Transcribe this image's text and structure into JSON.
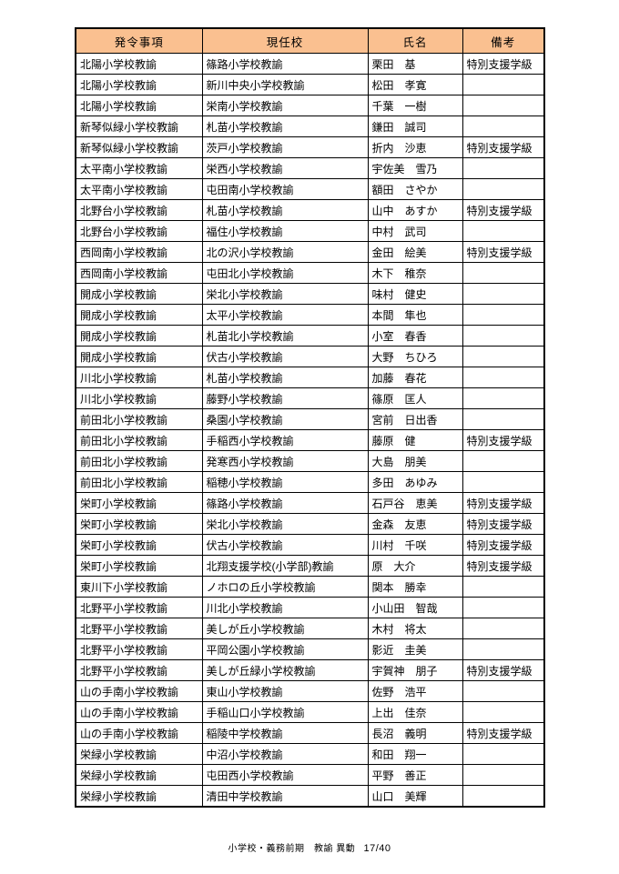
{
  "colors": {
    "header_bg": "#FAC090",
    "border": "#000000",
    "page_bg": "#FFFFFF"
  },
  "table": {
    "headers": [
      "発令事項",
      "現任校",
      "氏名",
      "備考"
    ],
    "rows": [
      [
        "北陽小学校教諭",
        "篠路小学校教諭",
        "栗田　基",
        "特別支援学級"
      ],
      [
        "北陽小学校教諭",
        "新川中央小学校教諭",
        "松田　孝寛",
        ""
      ],
      [
        "北陽小学校教諭",
        "栄南小学校教諭",
        "千葉　一樹",
        ""
      ],
      [
        "新琴似緑小学校教諭",
        "札苗小学校教諭",
        "鎌田　誠司",
        ""
      ],
      [
        "新琴似緑小学校教諭",
        "茨戸小学校教諭",
        "折内　沙恵",
        "特別支援学級"
      ],
      [
        "太平南小学校教諭",
        "栄西小学校教諭",
        "宇佐美　雪乃",
        ""
      ],
      [
        "太平南小学校教諭",
        "屯田南小学校教諭",
        "額田　さやか",
        ""
      ],
      [
        "北野台小学校教諭",
        "札苗小学校教諭",
        "山中　あすか",
        "特別支援学級"
      ],
      [
        "北野台小学校教諭",
        "福住小学校教諭",
        "中村　武司",
        ""
      ],
      [
        "西岡南小学校教諭",
        "北の沢小学校教諭",
        "金田　絵美",
        "特別支援学級"
      ],
      [
        "西岡南小学校教諭",
        "屯田北小学校教諭",
        "木下　稚奈",
        ""
      ],
      [
        "開成小学校教諭",
        "栄北小学校教諭",
        "味村　健史",
        ""
      ],
      [
        "開成小学校教諭",
        "太平小学校教諭",
        "本間　隼也",
        ""
      ],
      [
        "開成小学校教諭",
        "札苗北小学校教諭",
        "小室　春香",
        ""
      ],
      [
        "開成小学校教諭",
        "伏古小学校教諭",
        "大野　ちひろ",
        ""
      ],
      [
        "川北小学校教諭",
        "札苗小学校教諭",
        "加藤　春花",
        ""
      ],
      [
        "川北小学校教諭",
        "藤野小学校教諭",
        "篠原　匡人",
        ""
      ],
      [
        "前田北小学校教諭",
        "桑園小学校教諭",
        "宮前　日出香",
        ""
      ],
      [
        "前田北小学校教諭",
        "手稲西小学校教諭",
        "藤原　健",
        "特別支援学級"
      ],
      [
        "前田北小学校教諭",
        "発寒西小学校教諭",
        "大島　朋美",
        ""
      ],
      [
        "前田北小学校教諭",
        "稲穂小学校教諭",
        "多田　あゆみ",
        ""
      ],
      [
        "栄町小学校教諭",
        "篠路小学校教諭",
        "石戸谷　恵美",
        "特別支援学級"
      ],
      [
        "栄町小学校教諭",
        "栄北小学校教諭",
        "金森　友恵",
        "特別支援学級"
      ],
      [
        "栄町小学校教諭",
        "伏古小学校教諭",
        "川村　千咲",
        "特別支援学級"
      ],
      [
        "栄町小学校教諭",
        "北翔支援学校(小学部)教諭",
        "原　大介",
        "特別支援学級"
      ],
      [
        "東川下小学校教諭",
        "ノホロの丘小学校教諭",
        "関本　勝幸",
        ""
      ],
      [
        "北野平小学校教諭",
        "川北小学校教諭",
        "小山田　智哉",
        ""
      ],
      [
        "北野平小学校教諭",
        "美しが丘小学校教諭",
        "木村　将太",
        ""
      ],
      [
        "北野平小学校教諭",
        "平岡公園小学校教諭",
        "影近　圭美",
        ""
      ],
      [
        "北野平小学校教諭",
        "美しが丘緑小学校教諭",
        "宇賀神　朋子",
        "特別支援学級"
      ],
      [
        "山の手南小学校教諭",
        "東山小学校教諭",
        "佐野　浩平",
        ""
      ],
      [
        "山の手南小学校教諭",
        "手稲山口小学校教諭",
        "上出　佳奈",
        ""
      ],
      [
        "山の手南小学校教諭",
        "稲陵中学校教諭",
        "長沼　義明",
        "特別支援学級"
      ],
      [
        "栄緑小学校教諭",
        "中沼小学校教諭",
        "和田　翔一",
        ""
      ],
      [
        "栄緑小学校教諭",
        "屯田西小学校教諭",
        "平野　善正",
        ""
      ],
      [
        "栄緑小学校教諭",
        "清田中学校教諭",
        "山口　美輝",
        ""
      ]
    ]
  },
  "footer": {
    "label": "小学校・義務前期　教諭 異動",
    "page_number": "17/40"
  }
}
